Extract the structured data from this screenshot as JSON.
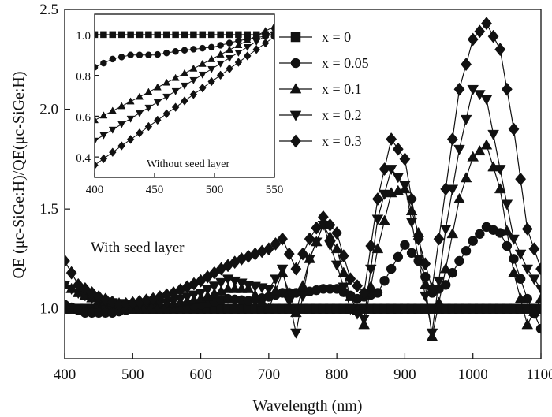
{
  "chart_data": [
    {
      "type": "line",
      "title": "",
      "xlabel": "Wavelength (nm)",
      "ylabel": "QE (μc-SiGe:H)/QE(μc-SiGe:H)",
      "xlim": [
        400,
        1100
      ],
      "ylim": [
        0.75,
        2.5
      ],
      "x_ticks": [
        400,
        500,
        600,
        700,
        800,
        900,
        1000,
        1100
      ],
      "y_ticks": [
        1.0,
        1.5,
        2.0,
        2.5
      ],
      "x_tick_labels": [
        "400",
        "500",
        "600",
        "700",
        "800",
        "900",
        "1000",
        "1100"
      ],
      "y_tick_labels": [
        "1.0",
        "1.5",
        "2.0",
        "2.5"
      ],
      "annotation": "With seed layer",
      "legend_position": "upper-middle",
      "grid": false,
      "series": [
        {
          "name": "x = 0",
          "marker": "square",
          "points": [
            [
              400,
              1.0
            ],
            [
              1100,
              1.0
            ]
          ]
        },
        {
          "name": "x = 0.05",
          "marker": "circle",
          "points": [
            [
              400,
              1.02
            ],
            [
              430,
              0.98
            ],
            [
              470,
              0.98
            ],
            [
              500,
              1.0
            ],
            [
              550,
              1.0
            ],
            [
              600,
              1.02
            ],
            [
              640,
              1.05
            ],
            [
              670,
              1.04
            ],
            [
              700,
              1.06
            ],
            [
              720,
              1.08
            ],
            [
              750,
              1.08
            ],
            [
              780,
              1.1
            ],
            [
              800,
              1.1
            ],
            [
              830,
              1.05
            ],
            [
              860,
              1.08
            ],
            [
              880,
              1.2
            ],
            [
              900,
              1.32
            ],
            [
              920,
              1.24
            ],
            [
              940,
              1.08
            ],
            [
              960,
              1.12
            ],
            [
              980,
              1.24
            ],
            [
              1000,
              1.34
            ],
            [
              1020,
              1.41
            ],
            [
              1040,
              1.38
            ],
            [
              1060,
              1.25
            ],
            [
              1080,
              1.05
            ],
            [
              1100,
              0.9
            ]
          ]
        },
        {
          "name": "x = 0.1",
          "marker": "triangle-up",
          "points": [
            [
              400,
              1.12
            ],
            [
              420,
              1.08
            ],
            [
              450,
              1.04
            ],
            [
              500,
              1.02
            ],
            [
              550,
              1.02
            ],
            [
              600,
              1.05
            ],
            [
              640,
              1.1
            ],
            [
              670,
              1.1
            ],
            [
              700,
              1.0
            ],
            [
              720,
              1.18
            ],
            [
              740,
              0.98
            ],
            [
              760,
              1.25
            ],
            [
              780,
              1.42
            ],
            [
              800,
              1.3
            ],
            [
              820,
              1.06
            ],
            [
              840,
              0.92
            ],
            [
              860,
              1.3
            ],
            [
              880,
              1.58
            ],
            [
              900,
              1.6
            ],
            [
              920,
              1.38
            ],
            [
              940,
              0.86
            ],
            [
              960,
              1.2
            ],
            [
              980,
              1.55
            ],
            [
              1000,
              1.76
            ],
            [
              1020,
              1.82
            ],
            [
              1040,
              1.6
            ],
            [
              1060,
              1.18
            ],
            [
              1080,
              0.92
            ],
            [
              1100,
              1.05
            ]
          ]
        },
        {
          "name": "x = 0.2",
          "marker": "triangle-down",
          "points": [
            [
              400,
              1.12
            ],
            [
              420,
              1.08
            ],
            [
              450,
              1.04
            ],
            [
              500,
              1.02
            ],
            [
              550,
              1.03
            ],
            [
              600,
              1.08
            ],
            [
              640,
              1.15
            ],
            [
              670,
              1.12
            ],
            [
              700,
              1.1
            ],
            [
              720,
              1.2
            ],
            [
              740,
              0.88
            ],
            [
              760,
              1.25
            ],
            [
              780,
              1.42
            ],
            [
              800,
              1.22
            ],
            [
              820,
              1.0
            ],
            [
              840,
              0.95
            ],
            [
              860,
              1.45
            ],
            [
              880,
              1.7
            ],
            [
              900,
              1.62
            ],
            [
              920,
              1.25
            ],
            [
              940,
              0.88
            ],
            [
              960,
              1.4
            ],
            [
              980,
              1.8
            ],
            [
              1000,
              2.1
            ],
            [
              1020,
              2.05
            ],
            [
              1040,
              1.7
            ],
            [
              1060,
              1.35
            ],
            [
              1080,
              1.2
            ],
            [
              1100,
              1.1
            ]
          ]
        },
        {
          "name": "x = 0.3",
          "marker": "diamond",
          "points": [
            [
              400,
              1.24
            ],
            [
              420,
              1.12
            ],
            [
              450,
              1.06
            ],
            [
              480,
              1.02
            ],
            [
              500,
              1.03
            ],
            [
              530,
              1.05
            ],
            [
              560,
              1.08
            ],
            [
              600,
              1.14
            ],
            [
              630,
              1.2
            ],
            [
              660,
              1.25
            ],
            [
              700,
              1.3
            ],
            [
              720,
              1.35
            ],
            [
              740,
              1.2
            ],
            [
              760,
              1.35
            ],
            [
              780,
              1.46
            ],
            [
              800,
              1.38
            ],
            [
              820,
              1.15
            ],
            [
              840,
              1.08
            ],
            [
              860,
              1.55
            ],
            [
              880,
              1.85
            ],
            [
              900,
              1.75
            ],
            [
              920,
              1.35
            ],
            [
              940,
              1.1
            ],
            [
              960,
              1.6
            ],
            [
              980,
              2.1
            ],
            [
              1000,
              2.35
            ],
            [
              1020,
              2.43
            ],
            [
              1040,
              2.3
            ],
            [
              1060,
              1.9
            ],
            [
              1080,
              1.4
            ],
            [
              1100,
              1.2
            ]
          ]
        }
      ]
    },
    {
      "type": "line",
      "title": "",
      "annotation": "Without seed layer",
      "xlim": [
        400,
        550
      ],
      "ylim": [
        0.3,
        1.1
      ],
      "x_ticks": [
        400,
        450,
        500,
        550
      ],
      "y_ticks": [
        0.4,
        0.6,
        0.8,
        1.0
      ],
      "x_tick_labels": [
        "400",
        "450",
        "500",
        "550"
      ],
      "y_tick_labels": [
        "0.4",
        "0.6",
        "0.8",
        "1.0"
      ],
      "grid": false,
      "series": [
        {
          "name": "x = 0",
          "marker": "square",
          "points": [
            [
              400,
              1.0
            ],
            [
              550,
              1.0
            ]
          ]
        },
        {
          "name": "x = 0.05",
          "marker": "circle",
          "points": [
            [
              400,
              0.84
            ],
            [
              415,
              0.88
            ],
            [
              430,
              0.9
            ],
            [
              450,
              0.9
            ],
            [
              470,
              0.92
            ],
            [
              500,
              0.94
            ],
            [
              520,
              0.97
            ],
            [
              550,
              1.0
            ]
          ]
        },
        {
          "name": "x = 0.1",
          "marker": "triangle-up",
          "points": [
            [
              400,
              0.58
            ],
            [
              550,
              1.04
            ]
          ]
        },
        {
          "name": "x = 0.2",
          "marker": "triangle-down",
          "points": [
            [
              400,
              0.48
            ],
            [
              550,
              1.02
            ]
          ]
        },
        {
          "name": "x = 0.3",
          "marker": "diamond",
          "points": [
            [
              400,
              0.36
            ],
            [
              550,
              0.99
            ]
          ]
        }
      ]
    }
  ]
}
